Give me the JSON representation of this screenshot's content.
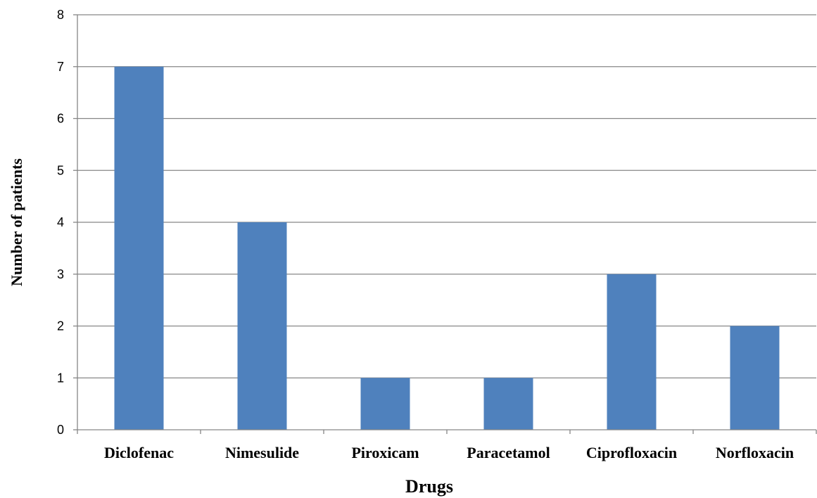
{
  "chart_data": {
    "type": "bar",
    "title": "",
    "xlabel": "Drugs",
    "ylabel": "Number  of patients",
    "categories": [
      "Diclofenac",
      "Nimesulide",
      "Piroxicam",
      "Paracetamol",
      "Ciprofloxacin",
      "Norfloxacin"
    ],
    "values": [
      7,
      4,
      1,
      1,
      3,
      2
    ],
    "ylim": [
      0,
      8
    ],
    "yticks": [
      "0",
      "1",
      "2",
      "3",
      "4",
      "5",
      "6",
      "7",
      "8"
    ],
    "grid": "horizontal",
    "legend": "none",
    "bar_color": "#4F81BD",
    "grid_color": "#868686"
  }
}
